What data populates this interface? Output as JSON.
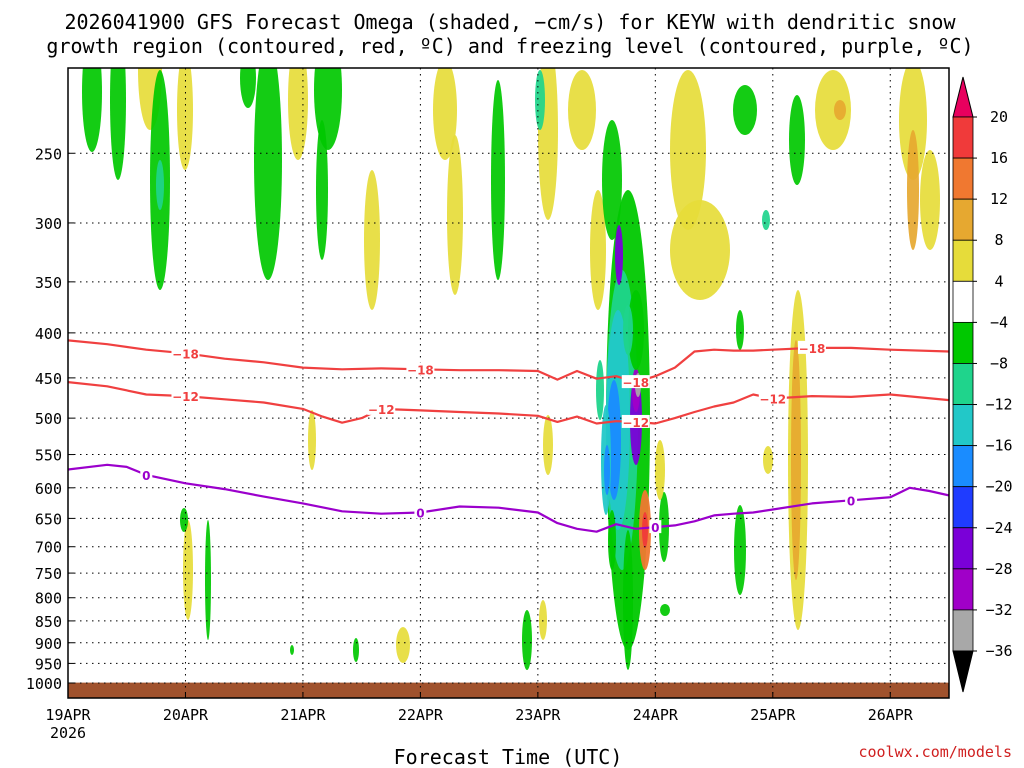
{
  "chart_data": {
    "type": "heatmap",
    "title_line1": "2026041900 GFS Forecast Omega (shaded, −cm/s) for KEYW with dendritic snow",
    "title_line2": "growth region (contoured, red, ºC) and freezing level (contoured, purple, ºC)",
    "xlabel": "Forecast Time (UTC)",
    "ylabel": "",
    "credit": "coolwx.com/models",
    "x_axis": {
      "unit": "hours after 19APR 00Z",
      "range": [
        0,
        180
      ],
      "ticks": [
        {
          "label": "19APR",
          "sublabel": "2026",
          "value": 0
        },
        {
          "label": "20APR",
          "value": 24
        },
        {
          "label": "21APR",
          "value": 48
        },
        {
          "label": "22APR",
          "value": 72
        },
        {
          "label": "23APR",
          "value": 96
        },
        {
          "label": "24APR",
          "value": 120
        },
        {
          "label": "25APR",
          "value": 144
        },
        {
          "label": "26APR",
          "value": 168
        }
      ]
    },
    "y_axis": {
      "unit": "hPa",
      "scale": "log",
      "range": [
        1040,
        200
      ],
      "ticks": [
        250,
        300,
        350,
        400,
        450,
        500,
        550,
        600,
        650,
        700,
        750,
        800,
        850,
        900,
        950,
        1000
      ]
    },
    "colorbar": {
      "levels": [
        "20",
        "16",
        "12",
        "8",
        "4",
        "−4",
        "−8",
        "−12",
        "−16",
        "−20",
        "−24",
        "−28",
        "−32",
        "−36"
      ],
      "colors": [
        "#e8005e",
        "#f03a3a",
        "#f07830",
        "#e6a830",
        "#e6dc3a",
        "#ffffff",
        "#00c800",
        "#1fd48c",
        "#22c8c8",
        "#1a8cff",
        "#1f3cff",
        "#7a00d8",
        "#a000c8",
        "#a8a8a8",
        "#000000"
      ]
    },
    "contours": [
      {
        "label": "−18",
        "color": "#f04040",
        "x": [
          0,
          8,
          16,
          24,
          32,
          40,
          48,
          56,
          64,
          72,
          80,
          88,
          96,
          100,
          104,
          108,
          112,
          116,
          120,
          124,
          128,
          132,
          136,
          140,
          144,
          152,
          160,
          168,
          180
        ],
        "y": [
          408,
          412,
          418,
          422,
          428,
          432,
          438,
          440,
          439,
          440,
          441,
          441,
          442,
          452,
          442,
          451,
          448,
          455,
          448,
          438,
          420,
          418,
          419,
          419,
          418,
          416,
          416,
          418,
          420
        ]
      },
      {
        "label": "−12",
        "color": "#f04040",
        "x": [
          0,
          8,
          16,
          24,
          32,
          40,
          48,
          52,
          56,
          60,
          64,
          72,
          80,
          88,
          96,
          100,
          104,
          108,
          112,
          116,
          120,
          124,
          128,
          132,
          136,
          140,
          144,
          152,
          160,
          168,
          180
        ],
        "y": [
          455,
          460,
          470,
          472,
          476,
          480,
          488,
          498,
          506,
          500,
          488,
          490,
          492,
          494,
          497,
          505,
          498,
          507,
          504,
          505,
          507,
          500,
          492,
          485,
          480,
          470,
          475,
          472,
          473,
          470,
          477
        ]
      },
      {
        "label": "0",
        "color": "#9b00cc",
        "x": [
          0,
          8,
          12,
          16,
          24,
          32,
          40,
          48,
          56,
          64,
          72,
          80,
          88,
          96,
          100,
          104,
          108,
          112,
          116,
          120,
          124,
          128,
          132,
          136,
          140,
          144,
          152,
          160,
          168,
          172,
          176,
          180
        ],
        "y": [
          572,
          565,
          568,
          580,
          593,
          602,
          614,
          625,
          638,
          642,
          640,
          630,
          632,
          640,
          658,
          668,
          673,
          660,
          668,
          665,
          662,
          655,
          645,
          642,
          640,
          635,
          625,
          620,
          615,
          600,
          605,
          612
        ]
      }
    ]
  }
}
